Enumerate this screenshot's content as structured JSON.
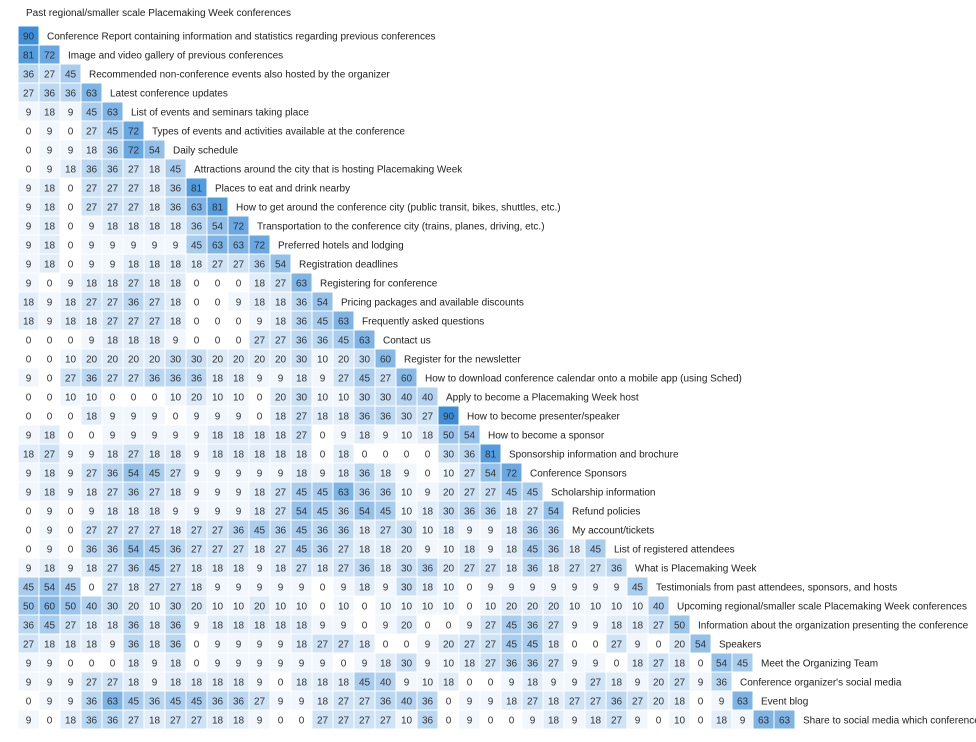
{
  "chart_data": {
    "type": "heatmap",
    "title": "",
    "color_scale": {
      "low": "#ffffff",
      "high": "#3d8fd9"
    },
    "value_max": 90,
    "rows": [
      {
        "label": "Past regional/smaller scale Placemaking Week conferences",
        "values": []
      },
      {
        "label": "Conference Report containing information and statistics regarding previous conferences",
        "values": [
          90
        ]
      },
      {
        "label": "Image and video gallery of previous conferences",
        "values": [
          81,
          72
        ]
      },
      {
        "label": "Recommended non-conference events also hosted by the organizer",
        "values": [
          36,
          27,
          45
        ]
      },
      {
        "label": "Latest conference updates",
        "values": [
          27,
          36,
          36,
          63
        ]
      },
      {
        "label": "List of events and seminars taking place",
        "values": [
          9,
          18,
          9,
          45,
          63
        ]
      },
      {
        "label": "Types of events and activities available at the conference",
        "values": [
          0,
          9,
          0,
          27,
          45,
          72
        ]
      },
      {
        "label": "Daily schedule",
        "values": [
          0,
          9,
          9,
          18,
          36,
          72,
          54
        ]
      },
      {
        "label": "Attractions around the city that is hosting Placemaking Week",
        "values": [
          0,
          9,
          18,
          36,
          36,
          27,
          18,
          45
        ]
      },
      {
        "label": "Places to eat and drink nearby",
        "values": [
          9,
          18,
          0,
          27,
          27,
          27,
          18,
          36,
          81
        ]
      },
      {
        "label": "How to get around the conference city (public transit, bikes, shuttles, etc.)",
        "values": [
          9,
          18,
          0,
          27,
          27,
          27,
          18,
          36,
          63,
          81
        ]
      },
      {
        "label": "Transportation to the conference city (trains, planes, driving, etc.)",
        "values": [
          9,
          18,
          0,
          9,
          18,
          18,
          18,
          18,
          36,
          54,
          72
        ]
      },
      {
        "label": "Preferred hotels and lodging",
        "values": [
          9,
          18,
          0,
          9,
          9,
          9,
          9,
          9,
          45,
          63,
          63,
          72
        ]
      },
      {
        "label": "Registration deadlines",
        "values": [
          9,
          18,
          0,
          9,
          9,
          18,
          18,
          18,
          18,
          27,
          27,
          36,
          54
        ]
      },
      {
        "label": "Registering for conference",
        "values": [
          9,
          0,
          9,
          18,
          18,
          27,
          18,
          18,
          0,
          0,
          0,
          18,
          27,
          63
        ]
      },
      {
        "label": "Pricing packages and available discounts",
        "values": [
          18,
          9,
          18,
          27,
          27,
          36,
          27,
          18,
          0,
          0,
          9,
          18,
          18,
          36,
          54
        ]
      },
      {
        "label": "Frequently asked questions",
        "values": [
          18,
          9,
          18,
          18,
          27,
          27,
          27,
          18,
          0,
          0,
          0,
          9,
          18,
          36,
          45,
          63
        ]
      },
      {
        "label": "Contact us",
        "values": [
          0,
          0,
          0,
          9,
          18,
          18,
          18,
          9,
          0,
          0,
          0,
          27,
          27,
          36,
          36,
          45,
          63
        ]
      },
      {
        "label": "Register for the newsletter",
        "values": [
          0,
          0,
          10,
          20,
          20,
          20,
          20,
          30,
          30,
          20,
          20,
          20,
          20,
          30,
          10,
          20,
          30,
          60
        ]
      },
      {
        "label": "How to download conference calendar onto a mobile app (using Sched)",
        "values": [
          9,
          0,
          27,
          36,
          27,
          27,
          36,
          36,
          36,
          18,
          18,
          9,
          9,
          18,
          9,
          27,
          45,
          27,
          60
        ]
      },
      {
        "label": "Apply to become a Placemaking Week host",
        "values": [
          0,
          0,
          10,
          10,
          0,
          0,
          0,
          10,
          20,
          10,
          10,
          0,
          20,
          30,
          10,
          10,
          30,
          30,
          40,
          40
        ]
      },
      {
        "label": "How to become presenter/speaker",
        "values": [
          0,
          0,
          0,
          18,
          9,
          9,
          9,
          0,
          9,
          9,
          9,
          0,
          18,
          27,
          18,
          18,
          36,
          36,
          30,
          27,
          90
        ]
      },
      {
        "label": "How to become a sponsor",
        "values": [
          9,
          18,
          0,
          0,
          9,
          9,
          9,
          9,
          9,
          18,
          18,
          18,
          18,
          27,
          0,
          9,
          18,
          9,
          10,
          18,
          50,
          54
        ]
      },
      {
        "label": "Sponsorship information and brochure",
        "values": [
          18,
          27,
          9,
          9,
          18,
          27,
          18,
          18,
          9,
          18,
          18,
          18,
          18,
          18,
          0,
          18,
          0,
          0,
          0,
          0,
          30,
          36,
          81
        ]
      },
      {
        "label": "Conference Sponsors",
        "values": [
          9,
          18,
          9,
          27,
          36,
          54,
          45,
          27,
          9,
          9,
          9,
          9,
          9,
          18,
          9,
          18,
          36,
          18,
          9,
          0,
          10,
          27,
          54,
          72
        ]
      },
      {
        "label": "Scholarship information",
        "values": [
          9,
          18,
          9,
          18,
          27,
          36,
          27,
          18,
          9,
          9,
          9,
          18,
          27,
          45,
          45,
          63,
          36,
          36,
          10,
          9,
          20,
          27,
          27,
          45,
          45
        ]
      },
      {
        "label": "Refund policies",
        "values": [
          0,
          9,
          0,
          9,
          18,
          18,
          18,
          9,
          9,
          9,
          9,
          18,
          27,
          54,
          45,
          36,
          54,
          45,
          10,
          18,
          30,
          36,
          36,
          18,
          27,
          54
        ]
      },
      {
        "label": "My account/tickets",
        "values": [
          0,
          9,
          0,
          27,
          27,
          27,
          27,
          18,
          27,
          27,
          36,
          45,
          36,
          45,
          36,
          36,
          18,
          27,
          30,
          10,
          18,
          9,
          9,
          18,
          36,
          36
        ]
      },
      {
        "label": "List of registered attendees",
        "values": [
          0,
          9,
          0,
          36,
          36,
          54,
          45,
          36,
          27,
          27,
          27,
          18,
          27,
          45,
          36,
          27,
          18,
          18,
          20,
          9,
          10,
          18,
          9,
          18,
          45,
          36,
          18,
          45
        ]
      },
      {
        "label": "What is Placemaking Week",
        "values": [
          9,
          18,
          9,
          18,
          27,
          36,
          45,
          27,
          18,
          18,
          18,
          9,
          18,
          27,
          18,
          27,
          36,
          18,
          30,
          36,
          20,
          27,
          27,
          18,
          36,
          18,
          27,
          27,
          36
        ]
      },
      {
        "label": "Testimonials from past attendees, sponsors, and hosts",
        "values": [
          45,
          54,
          45,
          0,
          27,
          18,
          27,
          27,
          18,
          9,
          9,
          9,
          9,
          9,
          0,
          9,
          18,
          9,
          30,
          18,
          10,
          0,
          9,
          9,
          9,
          9,
          9,
          9,
          9,
          45
        ]
      },
      {
        "label": "Upcoming regional/smaller scale Placemaking Week conferences",
        "values": [
          50,
          60,
          50,
          40,
          30,
          20,
          10,
          30,
          20,
          10,
          10,
          20,
          10,
          10,
          0,
          10,
          0,
          10,
          10,
          10,
          10,
          0,
          10,
          20,
          20,
          20,
          10,
          10,
          10,
          10,
          40
        ]
      },
      {
        "label": "Information about the organization presenting the conference",
        "values": [
          36,
          45,
          27,
          18,
          18,
          36,
          18,
          36,
          9,
          18,
          18,
          18,
          18,
          18,
          9,
          9,
          0,
          9,
          20,
          0,
          0,
          9,
          27,
          45,
          36,
          27,
          9,
          9,
          18,
          18,
          27,
          50
        ]
      },
      {
        "label": "Speakers",
        "values": [
          27,
          18,
          18,
          18,
          9,
          36,
          18,
          36,
          0,
          9,
          9,
          9,
          9,
          18,
          27,
          27,
          18,
          0,
          0,
          9,
          20,
          27,
          27,
          45,
          45,
          18,
          0,
          0,
          27,
          9,
          0,
          20,
          54
        ]
      },
      {
        "label": "Meet the Organizing Team",
        "values": [
          9,
          9,
          0,
          0,
          0,
          18,
          9,
          18,
          0,
          9,
          9,
          9,
          9,
          9,
          9,
          0,
          9,
          18,
          30,
          9,
          10,
          18,
          27,
          36,
          36,
          27,
          9,
          9,
          0,
          18,
          27,
          18,
          0,
          54,
          45
        ]
      },
      {
        "label": "Conference organizer's social media",
        "values": [
          9,
          9,
          9,
          27,
          27,
          18,
          9,
          18,
          18,
          18,
          18,
          9,
          0,
          18,
          18,
          18,
          45,
          40,
          9,
          10,
          18,
          0,
          0,
          9,
          18,
          9,
          9,
          27,
          18,
          9,
          20,
          27,
          9,
          36
        ]
      },
      {
        "label": "Event blog",
        "values": [
          0,
          9,
          9,
          36,
          63,
          45,
          36,
          45,
          45,
          36,
          36,
          27,
          9,
          9,
          18,
          27,
          27,
          36,
          40,
          36,
          0,
          9,
          9,
          18,
          27,
          18,
          27,
          27,
          36,
          27,
          20,
          18,
          0,
          9,
          63
        ]
      },
      {
        "label": "Share to social media which conference",
        "values": [
          9,
          0,
          18,
          36,
          36,
          27,
          18,
          27,
          27,
          18,
          18,
          9,
          0,
          0,
          27,
          27,
          27,
          27,
          10,
          36,
          0,
          9,
          0,
          0,
          9,
          18,
          9,
          18,
          27,
          9,
          0,
          10,
          0,
          18,
          9,
          63,
          63
        ]
      }
    ]
  }
}
